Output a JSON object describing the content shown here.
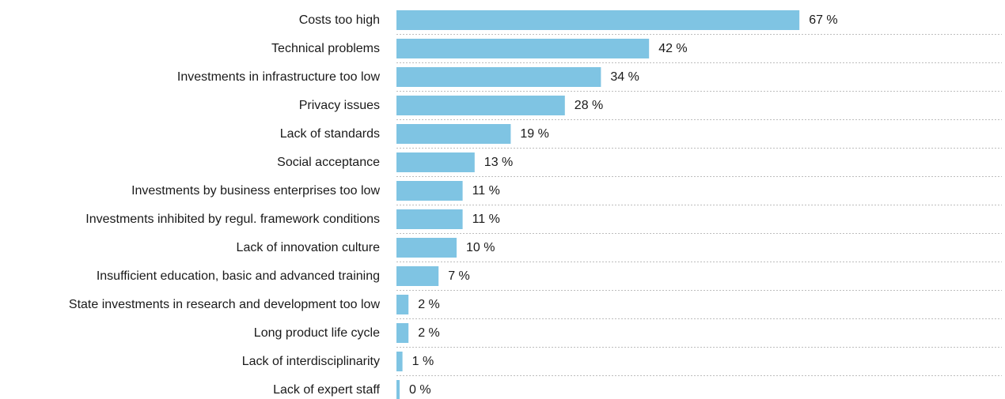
{
  "chart_data": {
    "type": "bar",
    "orientation": "horizontal",
    "categories": [
      "Costs too high",
      "Technical problems",
      "Investments in infrastructure too low",
      "Privacy issues",
      "Lack of standards",
      "Social acceptance",
      "Investments by business enterprises too low",
      "Investments inhibited by regul. framework conditions",
      "Lack of innovation culture",
      "Insufficient education, basic and advanced training",
      "State investments in research and development too low",
      "Long product life cycle",
      "Lack of interdisciplinarity",
      "Lack of expert staff"
    ],
    "values": [
      67,
      42,
      34,
      28,
      19,
      13,
      11,
      11,
      10,
      7,
      2,
      2,
      1,
      0
    ],
    "value_labels": [
      "67 %",
      "42 %",
      "34 %",
      "28 %",
      "19 %",
      "13 %",
      "11 %",
      "11 %",
      "10 %",
      "7 %",
      "2 %",
      "2 %",
      "1 %",
      "0 %"
    ],
    "unit": "%",
    "xlim": [
      0,
      100
    ],
    "title": "",
    "xlabel": "",
    "ylabel": "",
    "grid": "dotted separators between rows",
    "legend": "none",
    "bar_color": "#7fc4e3",
    "grid_color": "#bdbdbd",
    "text_color": "#1a1a1a"
  }
}
